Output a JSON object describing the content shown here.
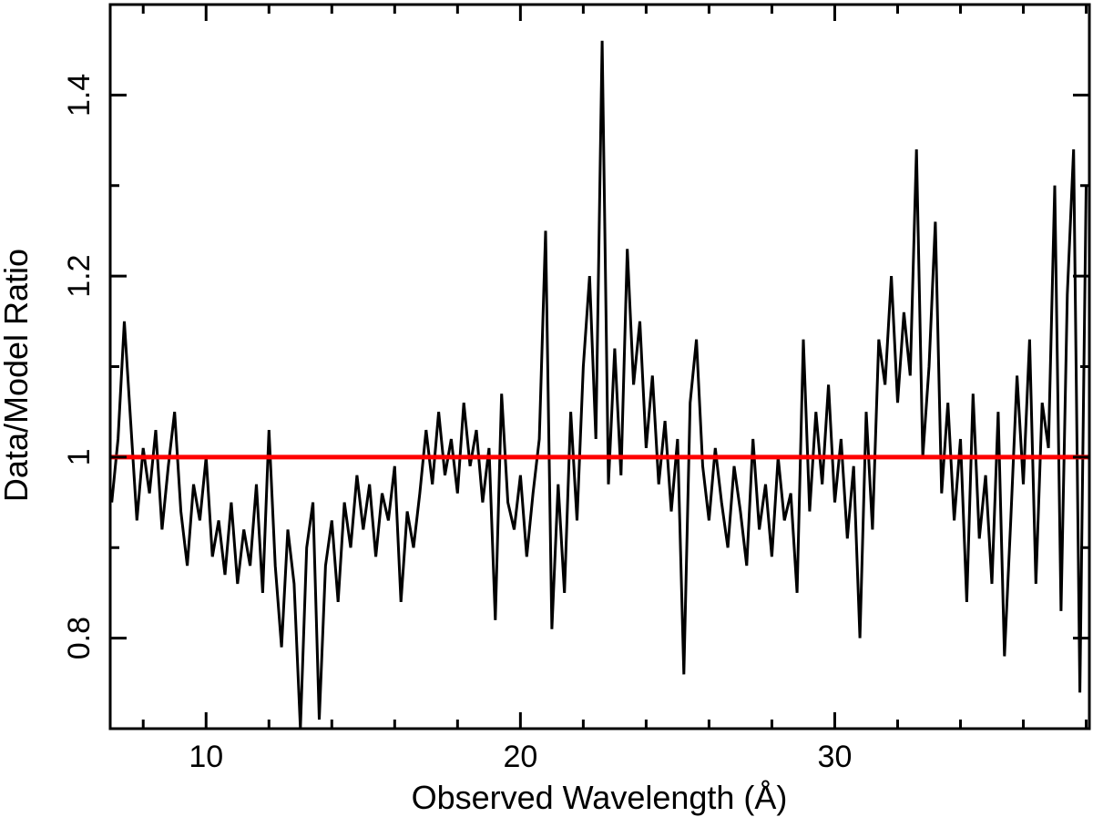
{
  "chart_data": {
    "type": "line",
    "xlabel": "Observed Wavelength (Å)",
    "ylabel": "Data/Model Ratio",
    "xlim": [
      6.95,
      38.1
    ],
    "ylim": [
      0.7,
      1.5
    ],
    "xticks": [
      10,
      20,
      30
    ],
    "xminorticks": [
      8,
      12,
      14,
      16,
      18,
      22,
      24,
      26,
      28,
      32,
      34,
      36,
      38
    ],
    "yticks": [
      0.8,
      1,
      1.2,
      1.4
    ],
    "yminorticks": [
      0.9,
      1.1,
      1.3
    ],
    "reference_line": {
      "value": 1,
      "color": "#ff0000"
    },
    "series": [
      {
        "color": "#000000",
        "x": [
          7.0,
          7.2,
          7.4,
          7.6,
          7.8,
          8.0,
          8.2,
          8.4,
          8.6,
          8.8,
          9.0,
          9.2,
          9.4,
          9.6,
          9.8,
          10.0,
          10.2,
          10.4,
          10.6,
          10.8,
          11.0,
          11.2,
          11.4,
          11.6,
          11.8,
          12.0,
          12.2,
          12.4,
          12.6,
          12.8,
          13.0,
          13.2,
          13.4,
          13.6,
          13.8,
          14.0,
          14.2,
          14.4,
          14.6,
          14.8,
          15.0,
          15.2,
          15.4,
          15.6,
          15.8,
          16.0,
          16.2,
          16.4,
          16.6,
          16.8,
          17.0,
          17.2,
          17.4,
          17.6,
          17.8,
          18.0,
          18.2,
          18.4,
          18.6,
          18.8,
          19.0,
          19.2,
          19.4,
          19.6,
          19.8,
          20.0,
          20.2,
          20.4,
          20.6,
          20.8,
          21.0,
          21.2,
          21.4,
          21.6,
          21.8,
          22.0,
          22.2,
          22.4,
          22.6,
          22.8,
          23.0,
          23.2,
          23.4,
          23.6,
          23.8,
          24.0,
          24.2,
          24.4,
          24.6,
          24.8,
          25.0,
          25.2,
          25.4,
          25.6,
          25.8,
          26.0,
          26.2,
          26.4,
          26.6,
          26.8,
          27.0,
          27.2,
          27.4,
          27.6,
          27.8,
          28.0,
          28.2,
          28.4,
          28.6,
          28.8,
          29.0,
          29.2,
          29.4,
          29.6,
          29.8,
          30.0,
          30.2,
          30.4,
          30.6,
          30.8,
          31.0,
          31.2,
          31.4,
          31.6,
          31.8,
          32.0,
          32.2,
          32.4,
          32.6,
          32.8,
          33.0,
          33.2,
          33.4,
          33.6,
          33.8,
          34.0,
          34.2,
          34.4,
          34.6,
          34.8,
          35.0,
          35.2,
          35.4,
          35.6,
          35.8,
          36.0,
          36.2,
          36.4,
          36.6,
          36.8,
          37.0,
          37.2,
          37.4,
          37.6,
          37.8,
          38.0
        ],
        "values": [
          0.95,
          1.02,
          1.15,
          1.04,
          0.93,
          1.01,
          0.96,
          1.03,
          0.92,
          0.99,
          1.05,
          0.94,
          0.88,
          0.97,
          0.93,
          1.0,
          0.89,
          0.93,
          0.87,
          0.95,
          0.86,
          0.92,
          0.88,
          0.97,
          0.85,
          1.03,
          0.88,
          0.79,
          0.92,
          0.86,
          0.7,
          0.9,
          0.95,
          0.71,
          0.88,
          0.93,
          0.84,
          0.95,
          0.9,
          0.98,
          0.92,
          0.97,
          0.89,
          0.96,
          0.93,
          0.99,
          0.84,
          0.94,
          0.9,
          0.96,
          1.03,
          0.97,
          1.05,
          0.98,
          1.02,
          0.96,
          1.06,
          0.99,
          1.03,
          0.95,
          1.01,
          0.82,
          1.07,
          0.95,
          0.92,
          0.98,
          0.89,
          0.96,
          1.02,
          1.25,
          0.81,
          0.97,
          0.85,
          1.05,
          0.93,
          1.1,
          1.2,
          1.02,
          1.46,
          0.97,
          1.12,
          0.98,
          1.23,
          1.08,
          1.15,
          1.01,
          1.09,
          0.97,
          1.04,
          0.94,
          1.02,
          0.76,
          1.06,
          1.13,
          0.99,
          0.93,
          1.01,
          0.95,
          0.9,
          0.99,
          0.94,
          0.88,
          1.02,
          0.92,
          0.97,
          0.89,
          1.0,
          0.93,
          0.96,
          0.85,
          1.13,
          0.94,
          1.05,
          0.97,
          1.08,
          0.95,
          1.02,
          0.91,
          0.99,
          0.8,
          1.05,
          0.92,
          1.13,
          1.08,
          1.2,
          1.06,
          1.16,
          1.09,
          1.34,
          1.0,
          1.1,
          1.26,
          0.96,
          1.06,
          0.93,
          1.02,
          0.84,
          1.07,
          0.91,
          0.98,
          0.86,
          1.05,
          0.78,
          0.93,
          1.09,
          0.97,
          1.13,
          0.86,
          1.06,
          1.01,
          1.3,
          0.83,
          1.18,
          1.34,
          0.74,
          1.3
        ]
      }
    ]
  }
}
